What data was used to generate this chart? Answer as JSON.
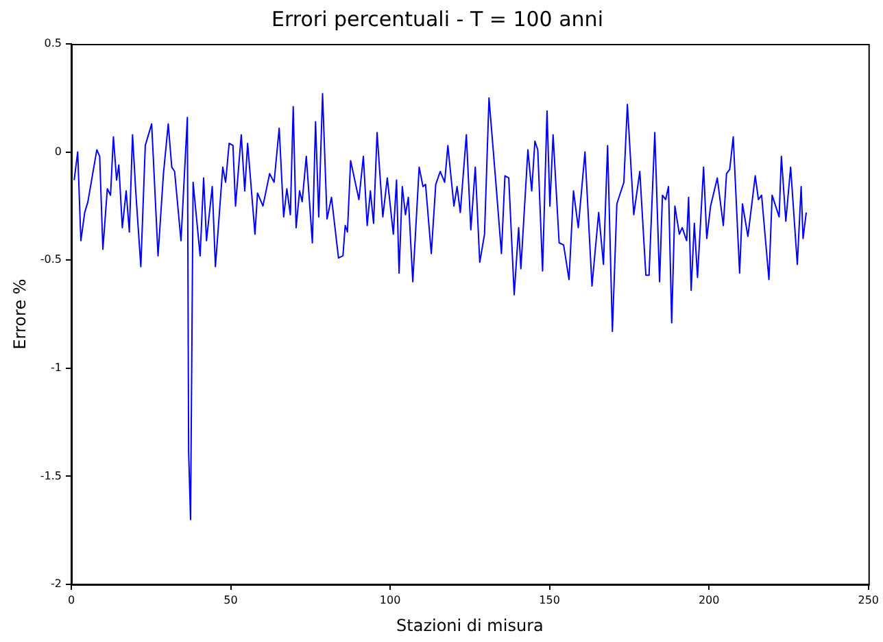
{
  "chart_data": {
    "type": "line",
    "title": "Errori percentuali - T = 100 anni",
    "xlabel": "Stazioni di misura",
    "ylabel": "Errore %",
    "xlim": [
      0,
      250
    ],
    "xticks": [
      0,
      50,
      100,
      150,
      200,
      250
    ],
    "ylim": [
      -2,
      0.5
    ],
    "yticks": [
      -2,
      -1.5,
      -1,
      -0.5,
      0,
      0.5
    ],
    "grid": false,
    "legend": false,
    "marker": "none",
    "line_style": "solid",
    "series": [
      {
        "color": "#0000ff",
        "x": [
          0.9,
          2.0,
          3.0,
          4.2,
          5.2,
          8.0,
          8.9,
          9.9,
          11.3,
          12.3,
          13.2,
          14.2,
          14.9,
          16.0,
          17.2,
          18.2,
          19.2,
          20.2,
          21.8,
          23.2,
          25.2,
          27.2,
          28.9,
          30.4,
          31.5,
          32.4,
          34.4,
          36.4,
          36.8,
          37.4,
          38.2,
          40.4,
          41.5,
          42.4,
          44.2,
          45.2,
          46.4,
          47.5,
          48.4,
          49.5,
          50.7,
          51.5,
          53.3,
          54.4,
          55.3,
          57.6,
          58.4,
          60.1,
          62.2,
          63.6,
          65.2,
          66.6,
          67.6,
          68.7,
          69.6,
          70.5,
          71.6,
          72.4,
          73.7,
          75.6,
          76.6,
          77.6,
          78.8,
          80.2,
          81.6,
          83.8,
          85.2,
          85.9,
          86.6,
          87.6,
          90.2,
          91.6,
          92.8,
          93.8,
          94.8,
          95.9,
          97.7,
          99.1,
          101.0,
          102.0,
          102.8,
          103.8,
          104.8,
          105.7,
          107.1,
          109.1,
          110.3,
          111.1,
          112.9,
          114.3,
          115.7,
          117.1,
          118.1,
          120.0,
          121.0,
          122.0,
          123.9,
          124.6,
          125.3,
          126.7,
          128.1,
          129.6,
          131.0,
          133.2,
          134.9,
          136.0,
          137.2,
          138.9,
          140.3,
          141.0,
          143.2,
          144.4,
          145.4,
          146.3,
          147.8,
          149.2,
          150.1,
          151.1,
          153.0,
          154.4,
          156.1,
          157.5,
          159.0,
          161.1,
          163.3,
          165.4,
          166.9,
          168.2,
          169.7,
          171.1,
          173.3,
          174.4,
          176.4,
          178.3,
          180.2,
          181.2,
          183.0,
          184.5,
          185.4,
          186.4,
          187.3,
          188.3,
          189.3,
          190.7,
          191.6,
          193.0,
          193.6,
          194.4,
          195.4,
          196.4,
          198.3,
          199.3,
          200.5,
          202.6,
          204.5,
          205.5,
          206.5,
          207.6,
          209.6,
          210.5,
          212.2,
          214.5,
          215.5,
          216.5,
          218.8,
          219.8,
          222.0,
          222.7,
          224.1,
          225.6,
          227.7,
          228.9,
          229.5,
          230.5
        ],
        "values": [
          -0.13,
          0.0,
          -0.41,
          -0.28,
          -0.23,
          0.01,
          -0.02,
          -0.45,
          -0.17,
          -0.2,
          0.07,
          -0.13,
          -0.06,
          -0.35,
          -0.18,
          -0.37,
          0.08,
          -0.18,
          -0.53,
          0.03,
          0.13,
          -0.48,
          -0.1,
          0.13,
          -0.07,
          -0.09,
          -0.41,
          0.16,
          -1.39,
          -1.7,
          -0.14,
          -0.48,
          -0.12,
          -0.41,
          -0.16,
          -0.53,
          -0.29,
          -0.07,
          -0.14,
          0.04,
          0.03,
          -0.25,
          0.08,
          -0.18,
          0.04,
          -0.38,
          -0.19,
          -0.25,
          -0.1,
          -0.14,
          0.11,
          -0.3,
          -0.17,
          -0.29,
          0.21,
          -0.35,
          -0.18,
          -0.23,
          -0.02,
          -0.42,
          0.14,
          -0.3,
          0.27,
          -0.31,
          -0.21,
          -0.49,
          -0.48,
          -0.34,
          -0.37,
          -0.04,
          -0.22,
          -0.02,
          -0.34,
          -0.18,
          -0.33,
          0.09,
          -0.3,
          -0.12,
          -0.38,
          -0.13,
          -0.56,
          -0.16,
          -0.29,
          -0.21,
          -0.6,
          -0.07,
          -0.16,
          -0.15,
          -0.47,
          -0.15,
          -0.09,
          -0.14,
          0.03,
          -0.25,
          -0.16,
          -0.28,
          0.08,
          -0.14,
          -0.36,
          -0.07,
          -0.51,
          -0.38,
          0.25,
          -0.15,
          -0.47,
          -0.11,
          -0.12,
          -0.66,
          -0.35,
          -0.54,
          0.01,
          -0.18,
          0.05,
          0.01,
          -0.55,
          0.19,
          -0.25,
          0.08,
          -0.42,
          -0.43,
          -0.59,
          -0.18,
          -0.35,
          0.0,
          -0.62,
          -0.28,
          -0.52,
          0.03,
          -0.83,
          -0.24,
          -0.14,
          0.22,
          -0.29,
          -0.09,
          -0.57,
          -0.57,
          0.09,
          -0.6,
          -0.2,
          -0.22,
          -0.16,
          -0.79,
          -0.25,
          -0.38,
          -0.35,
          -0.41,
          -0.21,
          -0.64,
          -0.33,
          -0.58,
          -0.07,
          -0.4,
          -0.25,
          -0.12,
          -0.34,
          -0.1,
          -0.08,
          0.07,
          -0.56,
          -0.24,
          -0.39,
          -0.11,
          -0.22,
          -0.2,
          -0.59,
          -0.2,
          -0.3,
          -0.02,
          -0.32,
          -0.07,
          -0.52,
          -0.16,
          -0.4,
          -0.28
        ]
      }
    ]
  }
}
